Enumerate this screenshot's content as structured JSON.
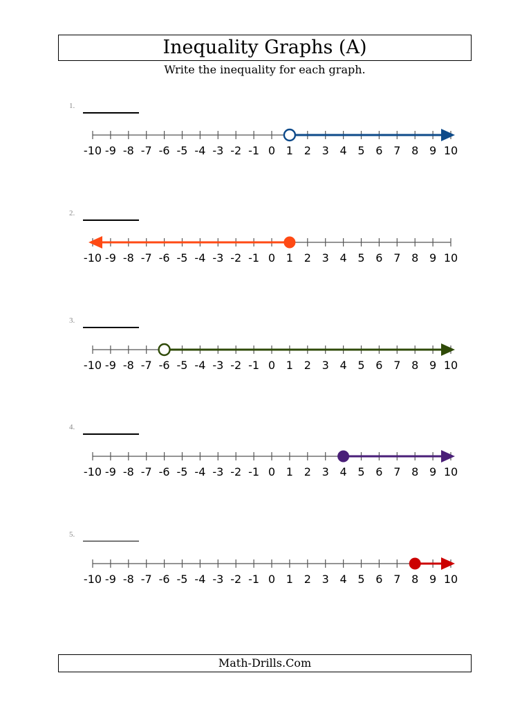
{
  "title": "Inequality Graphs (A)",
  "instructions": "Write the inequality for each graph.",
  "footer": "Math-Drills.Com",
  "axis": {
    "min": -10,
    "max": 10,
    "tick_labels": [
      "-10",
      "-9",
      "-8",
      "-7",
      "-6",
      "-5",
      "-4",
      "-3",
      "-2",
      "-1",
      "0",
      "1",
      "2",
      "3",
      "4",
      "5",
      "6",
      "7",
      "8",
      "9",
      "10"
    ]
  },
  "problems": [
    {
      "number": "1.",
      "point": 1,
      "closed": false,
      "direction": "right",
      "color": "#0d4a8a"
    },
    {
      "number": "2.",
      "point": 1,
      "closed": true,
      "direction": "left",
      "color": "#ff4a14"
    },
    {
      "number": "3.",
      "point": -6,
      "closed": false,
      "direction": "right",
      "color": "#2f4a08"
    },
    {
      "number": "4.",
      "point": 4,
      "closed": true,
      "direction": "right",
      "color": "#4a1f78"
    },
    {
      "number": "5.",
      "point": 8,
      "closed": true,
      "direction": "right",
      "color": "#cc0000"
    }
  ]
}
